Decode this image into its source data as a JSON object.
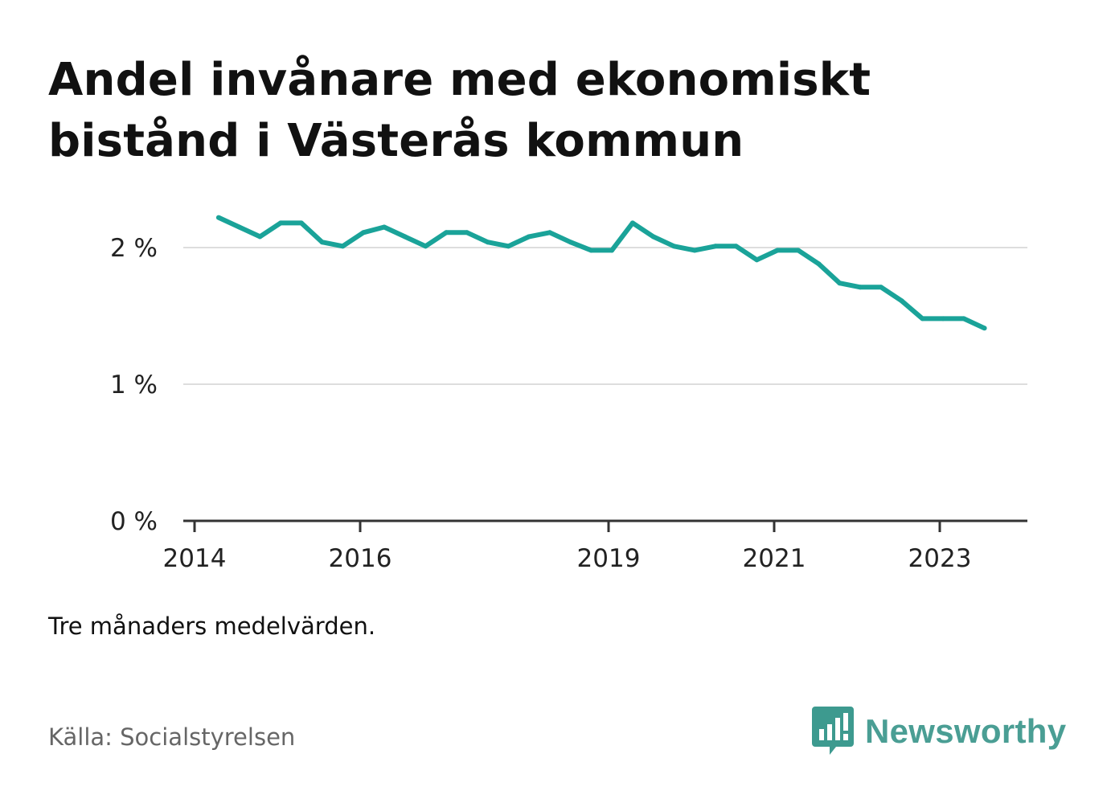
{
  "title": "Andel invånare med ekonomiskt bistånd i Västerås kommun",
  "note": "Tre månaders medelvärden.",
  "source": "Källa: Socialstyrelsen",
  "brand": {
    "name": "Newsworthy",
    "icon": "chat-bars-icon",
    "color": "#3d9a8f"
  },
  "colors": {
    "line": "#1aa399",
    "grid": "#dddddd",
    "axis": "#333333"
  },
  "chart_data": {
    "type": "line",
    "title": "Andel invånare med ekonomiskt bistånd i Västerås kommun",
    "xlabel": "",
    "ylabel": "",
    "ylim": [
      0,
      2.4
    ],
    "y_ticks": [
      {
        "value": 0,
        "label": "0 %"
      },
      {
        "value": 1,
        "label": "1 %"
      },
      {
        "value": 2,
        "label": "2 %"
      }
    ],
    "x_ticks": [
      {
        "value": 2014.0,
        "label": "2014"
      },
      {
        "value": 2016.0,
        "label": "2016"
      },
      {
        "value": 2019.0,
        "label": "2019"
      },
      {
        "value": 2021.0,
        "label": "2021"
      },
      {
        "value": 2023.0,
        "label": "2023"
      }
    ],
    "grid": true,
    "series": [
      {
        "name": "",
        "x": [
          2014.29,
          2014.54,
          2014.79,
          2015.04,
          2015.29,
          2015.54,
          2015.79,
          2016.04,
          2016.29,
          2016.54,
          2016.79,
          2017.04,
          2017.29,
          2017.54,
          2017.79,
          2018.04,
          2018.29,
          2018.54,
          2018.79,
          2019.04,
          2019.29,
          2019.54,
          2019.79,
          2020.04,
          2020.29,
          2020.54,
          2020.79,
          2021.04,
          2021.29,
          2021.54,
          2021.79,
          2022.04,
          2022.29,
          2022.54,
          2022.79,
          2023.04,
          2023.29,
          2023.54
        ],
        "values": [
          2.22,
          2.15,
          2.08,
          2.18,
          2.18,
          2.04,
          2.01,
          2.11,
          2.15,
          2.08,
          2.01,
          2.11,
          2.11,
          2.04,
          2.01,
          2.08,
          2.11,
          2.04,
          1.98,
          1.98,
          2.18,
          2.08,
          2.01,
          1.98,
          2.01,
          2.01,
          1.91,
          1.98,
          1.98,
          1.88,
          1.74,
          1.71,
          1.71,
          1.61,
          1.48,
          1.48,
          1.48,
          1.41
        ]
      }
    ]
  }
}
